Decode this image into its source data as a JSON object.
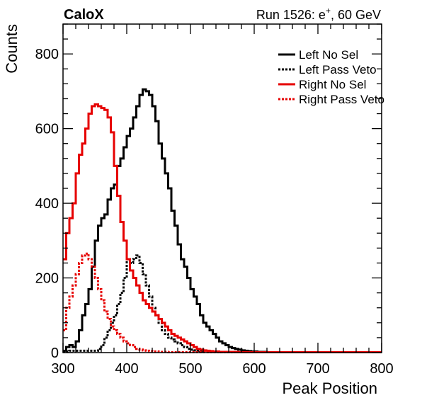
{
  "chart_data": {
    "type": "line",
    "title_left": "CaloX",
    "title_right": "Run 1526: e",
    "title_right_sup": "+",
    "title_right_end": ", 60 GeV",
    "xlabel": "Peak Position",
    "ylabel": "Counts",
    "xlim": [
      300,
      800
    ],
    "ylim": [
      0,
      880
    ],
    "x_ticks": [
      300,
      400,
      500,
      600,
      700,
      800
    ],
    "y_ticks": [
      0,
      200,
      400,
      600,
      800
    ],
    "grid": false,
    "legend_position": "top-right",
    "bin_width": 5,
    "bin_start": 300,
    "series": [
      {
        "name": "Left No Sel",
        "color": "#000000",
        "dash": "solid",
        "values": [
          5,
          15,
          20,
          15,
          30,
          60,
          100,
          130,
          170,
          230,
          300,
          340,
          360,
          370,
          410,
          440,
          450,
          500,
          520,
          550,
          580,
          600,
          630,
          660,
          690,
          705,
          700,
          690,
          660,
          620,
          560,
          520,
          480,
          440,
          380,
          340,
          290,
          250,
          230,
          200,
          170,
          150,
          130,
          100,
          80,
          70,
          60,
          50,
          40,
          30,
          25,
          20,
          15,
          12,
          10,
          8,
          6,
          5,
          4,
          3,
          3,
          2,
          2,
          2,
          1,
          1,
          1,
          1,
          1,
          1,
          1,
          1,
          1,
          1,
          1,
          1,
          1,
          1,
          1,
          1,
          1,
          1,
          1,
          1,
          1,
          1,
          1,
          1,
          1,
          1,
          1,
          1,
          1,
          1,
          1,
          1,
          1,
          1,
          1,
          1
        ]
      },
      {
        "name": "Left Pass Veto",
        "color": "#000000",
        "dash": "dotted",
        "values": [
          2,
          3,
          5,
          5,
          5,
          5,
          5,
          5,
          5,
          5,
          5,
          10,
          20,
          40,
          60,
          80,
          100,
          130,
          160,
          200,
          250,
          240,
          250,
          260,
          240,
          210,
          180,
          150,
          120,
          100,
          80,
          60,
          50,
          40,
          35,
          30,
          25,
          20,
          15,
          10,
          8,
          6,
          5,
          4,
          3,
          3,
          2,
          2,
          2,
          1,
          1,
          1,
          1,
          1,
          1,
          1,
          1,
          1,
          1,
          1,
          1,
          1,
          1,
          1,
          1,
          1,
          1,
          1,
          1,
          1,
          1,
          1,
          1,
          1,
          1,
          1,
          1,
          1,
          1,
          1,
          1,
          1,
          1,
          1,
          1,
          1,
          1,
          1,
          1,
          1,
          1,
          1,
          1,
          1,
          1,
          1,
          1,
          1,
          1,
          1
        ]
      },
      {
        "name": "Right No Sel",
        "color": "#e60000",
        "dash": "solid",
        "values": [
          250,
          320,
          360,
          400,
          480,
          530,
          560,
          600,
          640,
          660,
          665,
          660,
          655,
          650,
          630,
          590,
          500,
          420,
          350,
          300,
          250,
          220,
          200,
          180,
          160,
          140,
          130,
          120,
          110,
          100,
          90,
          80,
          70,
          60,
          50,
          45,
          40,
          35,
          30,
          25,
          20,
          15,
          10,
          8,
          6,
          5,
          4,
          3,
          3,
          2,
          2,
          2,
          2,
          2,
          2,
          1,
          1,
          1,
          1,
          1,
          1,
          1,
          1,
          1,
          1,
          1,
          1,
          1,
          1,
          1,
          1,
          1,
          1,
          1,
          1,
          1,
          1,
          1,
          1,
          1,
          1,
          1,
          1,
          1,
          1,
          1,
          1,
          1,
          1,
          1,
          1,
          1,
          1,
          1,
          1,
          1,
          1,
          1,
          1,
          1
        ]
      },
      {
        "name": "Right Pass Veto",
        "color": "#e60000",
        "dash": "dotted",
        "values": [
          60,
          120,
          150,
          180,
          210,
          240,
          260,
          265,
          250,
          230,
          200,
          170,
          140,
          110,
          90,
          70,
          60,
          50,
          40,
          30,
          25,
          20,
          15,
          10,
          8,
          6,
          5,
          4,
          3,
          3,
          2,
          2,
          2,
          1,
          1,
          1,
          1,
          1,
          1,
          1,
          1,
          1,
          1,
          1,
          1,
          1,
          1,
          1,
          1,
          1,
          1,
          1,
          1,
          1,
          1,
          1,
          1,
          1,
          1,
          1,
          1,
          1,
          1,
          1,
          1,
          1,
          1,
          1,
          1,
          1,
          1,
          1,
          1,
          1,
          1,
          1,
          1,
          1,
          1,
          1,
          1,
          1,
          1,
          1,
          1,
          1,
          1,
          1,
          1,
          1,
          1,
          1,
          1,
          1,
          1,
          1,
          1,
          1,
          1,
          1
        ]
      }
    ]
  }
}
